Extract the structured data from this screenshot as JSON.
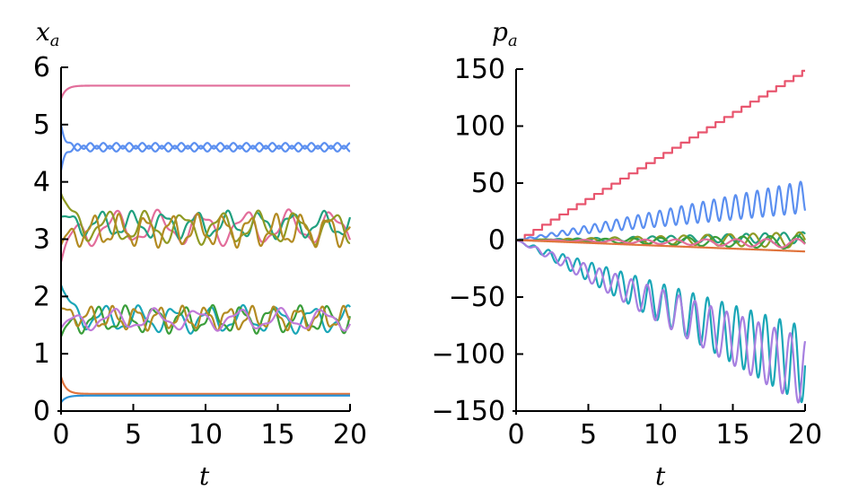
{
  "chart_data": [
    {
      "type": "line",
      "ylabel": "x",
      "ylabel_sub": "a",
      "xlabel": "t",
      "xlim": [
        0,
        20
      ],
      "ylim": [
        0,
        6
      ],
      "xticks": [
        0,
        5,
        10,
        15,
        20
      ],
      "yticks": [
        0,
        1,
        2,
        3,
        4,
        5,
        6
      ],
      "xtick_labels": [
        "0",
        "5",
        "10",
        "15",
        "20"
      ],
      "ytick_labels": [
        "0",
        "1",
        "2",
        "3",
        "4",
        "5",
        "6"
      ],
      "grid": false,
      "series": [
        {
          "color": "#e26d9a",
          "kind": "settle",
          "start": 5.45,
          "final": 5.68,
          "amp": 0,
          "period": 1
        },
        {
          "color": "#5b8ff0",
          "kind": "settle",
          "start": 4.2,
          "final": 4.63,
          "amp": 0.05,
          "period": 0.9
        },
        {
          "color": "#5b8ff0",
          "kind": "settle",
          "start": 5.0,
          "final": 4.58,
          "amp": 0.05,
          "period": 0.9,
          "phase": 3.14
        },
        {
          "color": "#e26d9a",
          "kind": "osc",
          "center": 3.2,
          "amp": 0.32,
          "period": 3.0,
          "start": 2.6
        },
        {
          "color": "#21a07f",
          "kind": "osc",
          "center": 3.25,
          "amp": 0.25,
          "period": 2.2,
          "start": 3.4
        },
        {
          "color": "#8f9a24",
          "kind": "osc",
          "center": 3.2,
          "amp": 0.3,
          "period": 2.6,
          "start": 3.8
        },
        {
          "color": "#b38b22",
          "kind": "osc",
          "center": 3.15,
          "amp": 0.3,
          "period": 1.8,
          "start": 2.9
        },
        {
          "color": "#1aa6b7",
          "kind": "osc",
          "center": 1.6,
          "amp": 0.25,
          "period": 2.4,
          "start": 2.2
        },
        {
          "color": "#3b9e3b",
          "kind": "osc",
          "center": 1.6,
          "amp": 0.25,
          "period": 2.0,
          "start": 1.3
        },
        {
          "color": "#b38b22",
          "kind": "osc",
          "center": 1.62,
          "amp": 0.22,
          "period": 1.6,
          "start": 1.8
        },
        {
          "color": "#c07ad8",
          "kind": "osc",
          "center": 1.6,
          "amp": 0.2,
          "period": 2.9,
          "start": 1.45
        },
        {
          "color": "#e0743d",
          "kind": "settle",
          "start": 0.6,
          "final": 0.3,
          "amp": 0,
          "period": 1
        },
        {
          "color": "#2a92d8",
          "kind": "settle",
          "start": 0.15,
          "final": 0.27,
          "amp": 0,
          "period": 1
        }
      ]
    },
    {
      "type": "line",
      "ylabel": "p",
      "ylabel_sub": "a",
      "xlabel": "t",
      "xlim": [
        0,
        20
      ],
      "ylim": [
        -150,
        150
      ],
      "xticks": [
        0,
        5,
        10,
        15,
        20
      ],
      "yticks": [
        150,
        100,
        50,
        0,
        -50,
        -100,
        -150
      ],
      "xtick_labels": [
        "0",
        "5",
        "10",
        "15",
        "20"
      ],
      "ytick_labels": [
        "150",
        "100",
        "50",
        "0",
        "−50",
        "−100",
        "−150"
      ],
      "grid": false,
      "series": [
        {
          "color": "#e8556e",
          "kind": "stair",
          "slope": 7.5,
          "step": 0.6
        },
        {
          "color": "#5b8ff0",
          "kind": "grow_osc",
          "drift": 1.9,
          "amp": 0.7,
          "period": 0.75
        },
        {
          "color": "#1aa6b7",
          "kind": "grow_osc",
          "drift": -5.5,
          "amp": 1.7,
          "period": 1.0
        },
        {
          "color": "#a67fe0",
          "kind": "grow_osc",
          "drift": -5.8,
          "amp": 1.5,
          "period": 1.1
        },
        {
          "color": "#21a07f",
          "kind": "grow_osc",
          "drift": 0.1,
          "amp": 0.25,
          "period": 1.3
        },
        {
          "color": "#8f9a24",
          "kind": "grow_osc",
          "drift": 0.0,
          "amp": 0.35,
          "period": 1.6
        },
        {
          "color": "#3b9e3b",
          "kind": "grow_osc",
          "drift": -0.1,
          "amp": 0.3,
          "period": 1.9
        },
        {
          "color": "#e26d9a",
          "kind": "grow_osc",
          "drift": -0.15,
          "amp": 0.2,
          "period": 2.1
        },
        {
          "color": "#e0743d",
          "kind": "linear",
          "slope": -0.5
        }
      ]
    }
  ]
}
